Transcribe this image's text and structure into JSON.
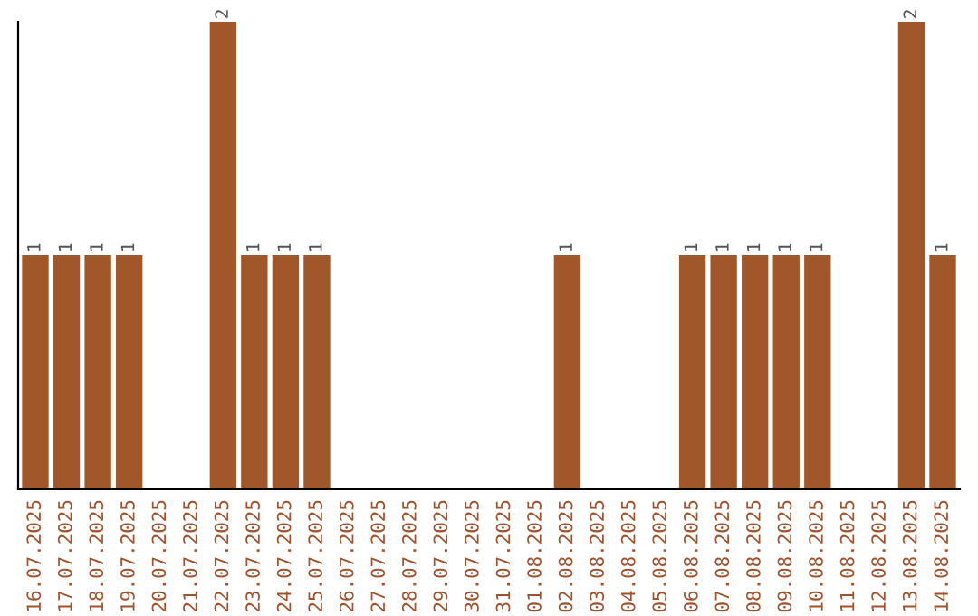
{
  "chart_data": {
    "type": "bar",
    "categories": [
      "16.07.2025",
      "17.07.2025",
      "18.07.2025",
      "19.07.2025",
      "20.07.2025",
      "21.07.2025",
      "22.07.2025",
      "23.07.2025",
      "24.07.2025",
      "25.07.2025",
      "26.07.2025",
      "27.07.2025",
      "28.07.2025",
      "29.07.2025",
      "30.07.2025",
      "31.07.2025",
      "01.08.2025",
      "02.08.2025",
      "03.08.2025",
      "04.08.2025",
      "05.08.2025",
      "06.08.2025",
      "07.08.2025",
      "08.08.2025",
      "09.08.2025",
      "10.08.2025",
      "11.08.2025",
      "12.08.2025",
      "13.08.2025",
      "14.08.2025"
    ],
    "values": [
      1,
      1,
      1,
      1,
      0,
      0,
      2,
      1,
      1,
      1,
      0,
      0,
      0,
      0,
      0,
      0,
      0,
      1,
      0,
      0,
      0,
      1,
      1,
      1,
      1,
      1,
      0,
      0,
      2,
      1
    ],
    "value_labels": [
      "1",
      "1",
      "1",
      "1",
      null,
      null,
      "2",
      "1",
      "1",
      "1",
      null,
      null,
      null,
      null,
      null,
      null,
      null,
      "1",
      null,
      null,
      null,
      "1",
      "1",
      "1",
      "1",
      "1",
      null,
      null,
      "2",
      "1"
    ],
    "color": "#a0582a",
    "grid": false,
    "legend": false,
    "tick_labels": "x"
  }
}
